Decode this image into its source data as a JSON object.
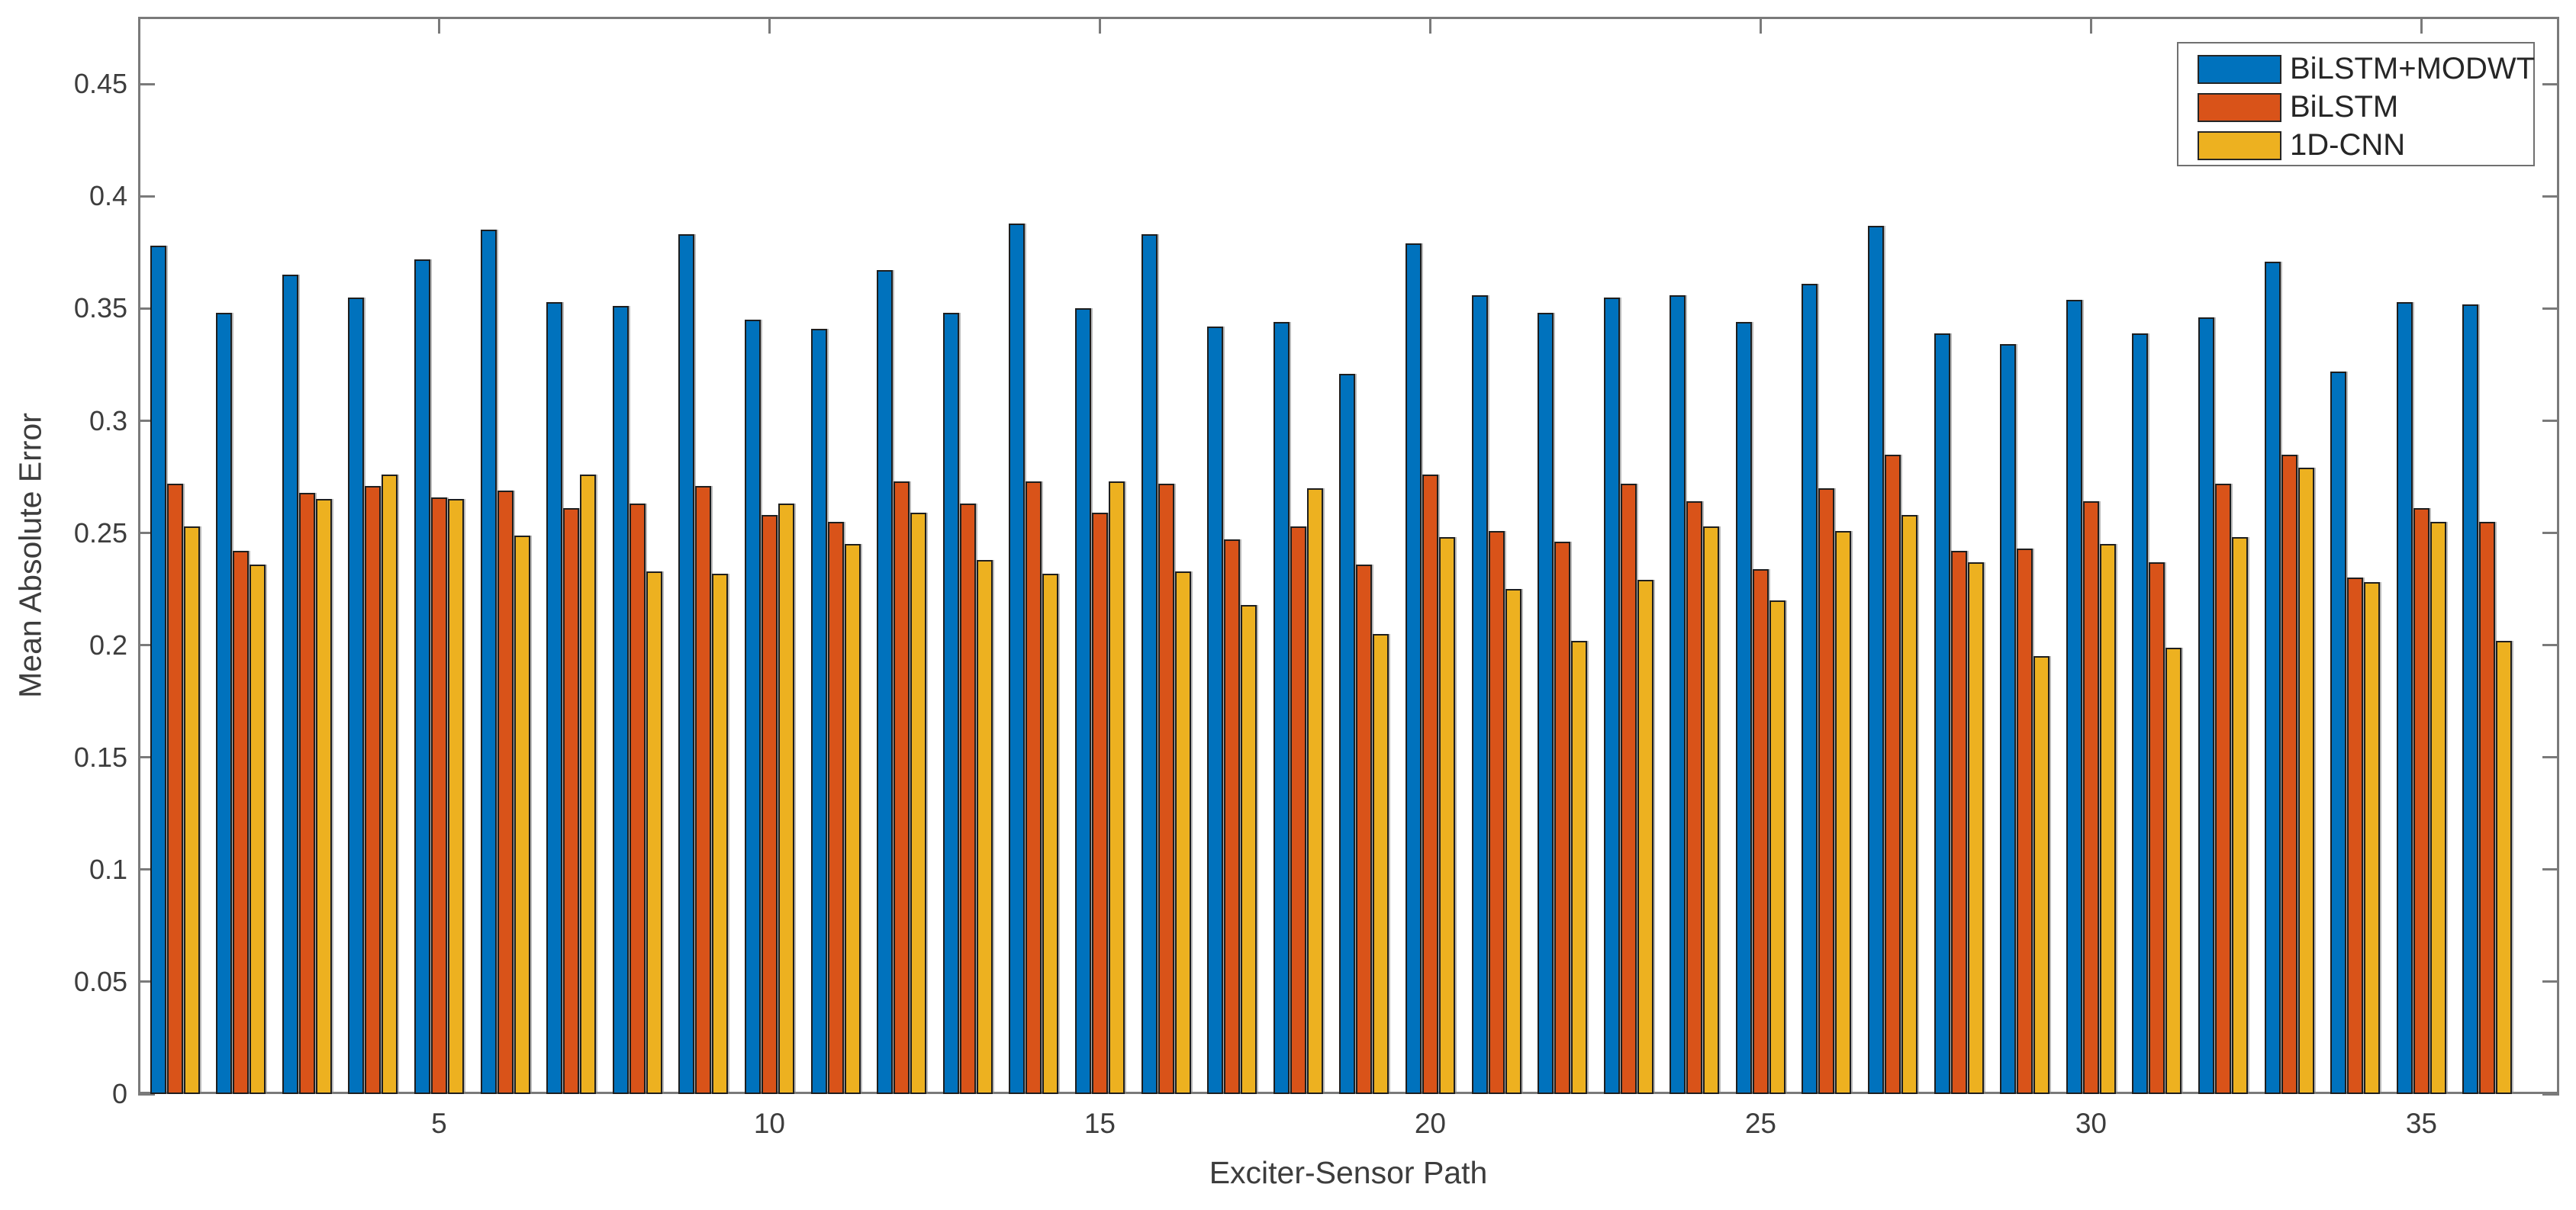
{
  "figure": {
    "xlabel": "Exciter-Sensor Path",
    "ylabel": "Mean Absolute Error",
    "background_color": "#ffffff",
    "axis_color": "#7a7a7a",
    "text_color": "#3d3d3d"
  },
  "legend": {
    "position": "top-right",
    "items": [
      {
        "label": "BiLSTM+MODWT",
        "color": "#0072BD"
      },
      {
        "label": "BiLSTM",
        "color": "#D95319"
      },
      {
        "label": "1D-CNN",
        "color": "#EDB120"
      }
    ]
  },
  "chart_data": {
    "type": "bar",
    "title": "",
    "xlabel": "Exciter-Sensor Path",
    "ylabel": "Mean Absolute Error",
    "categories": [
      1,
      2,
      3,
      4,
      5,
      6,
      7,
      8,
      9,
      10,
      11,
      12,
      13,
      14,
      15,
      16,
      17,
      18,
      19,
      20,
      21,
      22,
      23,
      24,
      25,
      26,
      27,
      28,
      29,
      30,
      31,
      32,
      33,
      34,
      35,
      36
    ],
    "xticks": [
      5,
      10,
      15,
      20,
      25,
      30,
      35
    ],
    "yticks": [
      0,
      0.05,
      0.1,
      0.15,
      0.2,
      0.25,
      0.3,
      0.35,
      0.4,
      0.45
    ],
    "ylim": [
      0,
      0.48
    ],
    "grid": false,
    "legend_position": "top-right",
    "series": [
      {
        "name": "BiLSTM+MODWT",
        "color": "#0072BD",
        "values": [
          0.378,
          0.348,
          0.365,
          0.355,
          0.372,
          0.385,
          0.353,
          0.351,
          0.383,
          0.345,
          0.341,
          0.367,
          0.348,
          0.388,
          0.35,
          0.383,
          0.342,
          0.344,
          0.321,
          0.379,
          0.356,
          0.348,
          0.355,
          0.356,
          0.344,
          0.361,
          0.387,
          0.339,
          0.334,
          0.354,
          0.339,
          0.346,
          0.371,
          0.322,
          0.353,
          0.352
        ]
      },
      {
        "name": "BiLSTM",
        "color": "#D95319",
        "values": [
          0.272,
          0.242,
          0.268,
          0.271,
          0.266,
          0.269,
          0.261,
          0.263,
          0.271,
          0.258,
          0.255,
          0.273,
          0.263,
          0.273,
          0.259,
          0.272,
          0.247,
          0.253,
          0.236,
          0.276,
          0.251,
          0.246,
          0.272,
          0.264,
          0.234,
          0.27,
          0.285,
          0.242,
          0.243,
          0.264,
          0.237,
          0.272,
          0.285,
          0.23,
          0.261,
          0.255
        ]
      },
      {
        "name": "1D-CNN",
        "color": "#EDB120",
        "values": [
          0.253,
          0.236,
          0.265,
          0.276,
          0.265,
          0.249,
          0.276,
          0.233,
          0.232,
          0.263,
          0.245,
          0.259,
          0.238,
          0.232,
          0.273,
          0.233,
          0.218,
          0.27,
          0.205,
          0.248,
          0.225,
          0.202,
          0.229,
          0.253,
          0.22,
          0.251,
          0.258,
          0.237,
          0.195,
          0.245,
          0.199,
          0.248,
          0.279,
          0.228,
          0.255,
          0.202
        ]
      }
    ]
  }
}
